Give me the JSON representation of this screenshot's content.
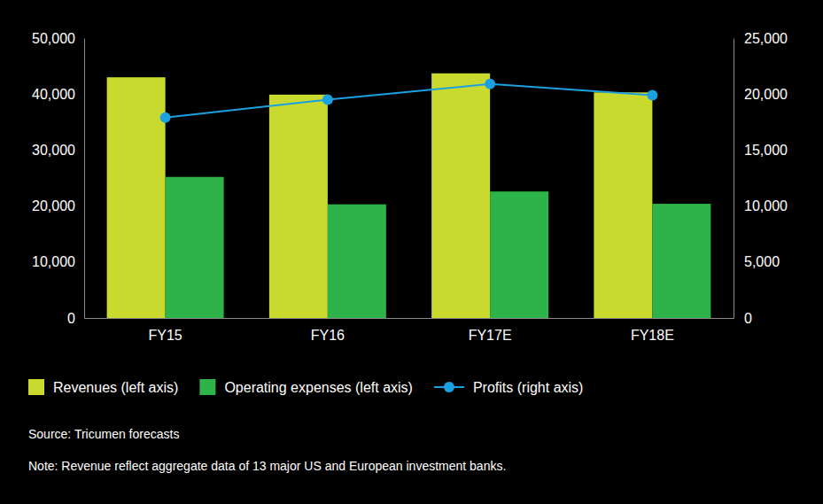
{
  "chart_data": {
    "type": "bar",
    "categories": [
      "FY15",
      "FY16",
      "FY17E",
      "FY18E"
    ],
    "series": [
      {
        "name": "Revenues (left axis)",
        "type": "bar",
        "color": "#c9d92e",
        "values": [
          43000,
          39900,
          43700,
          40300
        ]
      },
      {
        "name": "Operating expenses (left axis)",
        "type": "bar",
        "color": "#2db34a",
        "values": [
          25200,
          20300,
          22600,
          20400
        ]
      },
      {
        "name": "Profits (right axis)",
        "type": "line",
        "axis": "y2",
        "color": "#1ba1e2",
        "marker": "circle",
        "line_style": "solid",
        "values": [
          17900,
          19500,
          20900,
          19900
        ]
      }
    ],
    "ylim": [
      0,
      50000
    ],
    "yticks": [
      0,
      {
        "value": 10000,
        "label": "10,000"
      },
      {
        "value": 20000,
        "label": "20,000"
      },
      {
        "value": 30000,
        "label": "30,000"
      },
      {
        "value": 40000,
        "label": "40,000"
      },
      {
        "value": 50000,
        "label": "50,000"
      }
    ],
    "y2lim": [
      0,
      25000
    ],
    "y2ticks": [
      0,
      {
        "value": 5000,
        "label": "5,000"
      },
      {
        "value": 10000,
        "label": "10,000"
      },
      {
        "value": 15000,
        "label": "15,000"
      },
      {
        "value": 20000,
        "label": "20,000"
      },
      {
        "value": 25000,
        "label": "25,000"
      }
    ],
    "grid": false,
    "legend": "bottom",
    "annotations": [
      "Source: Tricumen forecasts",
      "Note: Revenue reflect aggregate data of 13 major US and European investment banks."
    ]
  }
}
